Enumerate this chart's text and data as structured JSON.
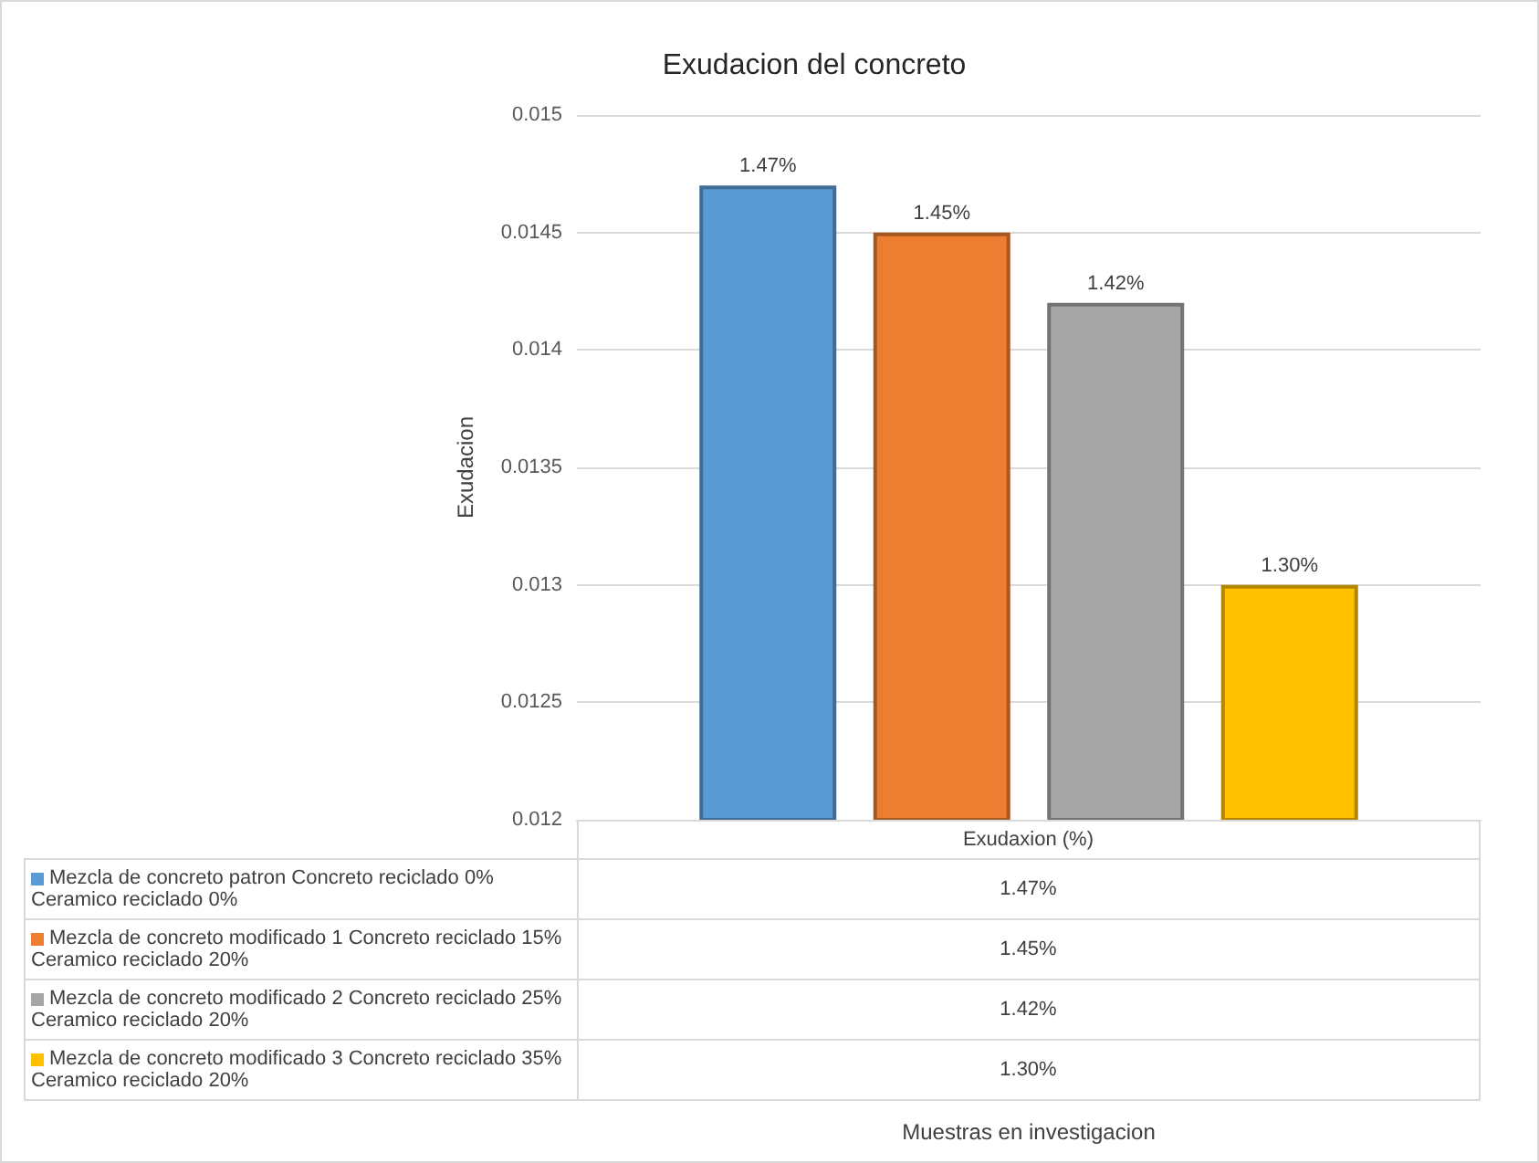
{
  "chart_data": {
    "type": "bar",
    "title": "Exudacion del concreto",
    "annotations": [
      "Muestras en investigacion"
    ],
    "ylabel": "Exudacion",
    "categories": [
      "Exudaxion (%)"
    ],
    "series": [
      {
        "name": "Mezcla de concreto patron Concreto reciclado 0% Ceramico reciclado 0%",
        "color": "#5b9bd5",
        "values": [
          0.0147
        ],
        "value_labels": [
          "1.47%"
        ]
      },
      {
        "name": "Mezcla de concreto modificado 1 Concreto reciclado 15% Ceramico reciclado 20%",
        "color": "#ed7d31",
        "values": [
          0.0145
        ],
        "value_labels": [
          "1.45%"
        ]
      },
      {
        "name": "Mezcla de concreto modificado 2 Concreto reciclado 25% Ceramico reciclado 20%",
        "color": "#a5a5a5",
        "values": [
          0.0142
        ],
        "value_labels": [
          "1.42%"
        ]
      },
      {
        "name": "Mezcla de concreto modificado 3 Concreto reciclado 35% Ceramico reciclado 20%",
        "color": "#ffc000",
        "values": [
          0.013
        ],
        "value_labels": [
          "1.30%"
        ]
      }
    ],
    "ylim": [
      0.012,
      0.015
    ],
    "yticks": [
      0.012,
      0.0125,
      0.013,
      0.0135,
      0.014,
      0.0145,
      0.015
    ],
    "grid": "y",
    "legend": "bottom"
  }
}
